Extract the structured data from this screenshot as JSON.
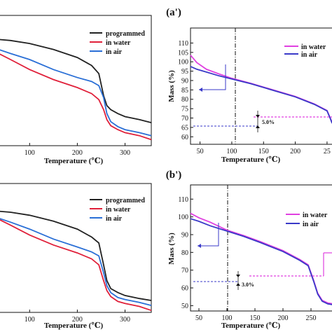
{
  "chart_data": [
    {
      "panel": "top-left",
      "type": "line",
      "title": "",
      "xlabel": "Temperature (℃)",
      "ylabel": "",
      "xlim": [
        35,
        355
      ],
      "ylim": [
        50,
        115
      ],
      "xticks": [
        "100",
        "200",
        "300"
      ],
      "yticks": [],
      "legend": "top-right",
      "series": [
        {
          "name": "programmed",
          "color": "#222222",
          "x": [
            35,
            60,
            100,
            150,
            200,
            230,
            245,
            255,
            262,
            270,
            285,
            300,
            330,
            355
          ],
          "y": [
            103,
            102.5,
            101,
            98,
            94,
            90,
            86,
            75,
            70,
            68,
            66,
            64.5,
            63,
            61.5
          ]
        },
        {
          "name": "in water",
          "color": "#e0203a",
          "x": [
            35,
            60,
            100,
            150,
            200,
            230,
            245,
            255,
            262,
            270,
            285,
            300,
            330,
            355
          ],
          "y": [
            96,
            93,
            88,
            83,
            79,
            76,
            73,
            68,
            63,
            60,
            58,
            56.5,
            55,
            53
          ]
        },
        {
          "name": "in air",
          "color": "#2a6fd6",
          "x": [
            35,
            60,
            100,
            150,
            200,
            230,
            245,
            255,
            262,
            270,
            285,
            300,
            330,
            355
          ],
          "y": [
            98,
            96,
            93,
            88,
            84,
            82,
            80,
            74,
            66,
            62,
            59.5,
            58,
            56.5,
            55
          ]
        }
      ]
    },
    {
      "panel": "top-right",
      "type": "line",
      "title": "(a')",
      "xlabel": "Temperature (℃)",
      "ylabel": "Mass (%)",
      "xlim": [
        35,
        260
      ],
      "ylim": [
        56,
        118
      ],
      "xticks": [
        "50",
        "100",
        "150",
        "200",
        "25"
      ],
      "yticks": [
        "60",
        "65",
        "70",
        "75",
        "80",
        "85",
        "90",
        "95",
        "100",
        "105",
        "110"
      ],
      "legend": "top-right",
      "series": [
        {
          "name": "in water",
          "color": "#e040e0",
          "x": [
            35,
            45,
            60,
            80,
            100,
            130,
            160,
            200,
            230,
            250,
            255,
            258
          ],
          "y": [
            103.5,
            99.5,
            96,
            93.5,
            91.2,
            88.5,
            85.5,
            81.5,
            77.5,
            74,
            70,
            67.5
          ]
        },
        {
          "name": "in air",
          "color": "#3a3ac8",
          "x": [
            35,
            45,
            60,
            80,
            100,
            130,
            160,
            200,
            230,
            250,
            255,
            258
          ],
          "y": [
            97.5,
            96,
            94.5,
            92.5,
            90.8,
            88.3,
            85.3,
            81.3,
            77.3,
            73.8,
            69.8,
            67.2
          ]
        }
      ],
      "annotations": [
        {
          "text": "5.0%"
        }
      ]
    },
    {
      "panel": "bottom-left",
      "type": "line",
      "title": "",
      "xlabel": "Temperature (℃)",
      "ylabel": "",
      "xlim": [
        35,
        355
      ],
      "ylim": [
        50,
        115
      ],
      "xticks": [
        "100",
        "200",
        "300"
      ],
      "yticks": [],
      "legend": "top-right",
      "series": [
        {
          "name": "programmed",
          "color": "#222222",
          "x": [
            35,
            60,
            100,
            150,
            200,
            230,
            245,
            255,
            262,
            270,
            285,
            300,
            330,
            355
          ],
          "y": [
            101,
            100.5,
            99,
            96,
            92,
            88,
            85,
            74,
            66,
            62,
            60,
            58.5,
            57,
            56
          ]
        },
        {
          "name": "in water",
          "color": "#e0203a",
          "x": [
            35,
            60,
            100,
            150,
            200,
            230,
            245,
            255,
            262,
            270,
            285,
            300,
            330,
            355
          ],
          "y": [
            97,
            94,
            89,
            84,
            80,
            77,
            74,
            66,
            61,
            58,
            55.5,
            54.5,
            53,
            51
          ]
        },
        {
          "name": "in air",
          "color": "#2a6fd6",
          "x": [
            35,
            60,
            100,
            150,
            200,
            230,
            245,
            255,
            262,
            270,
            285,
            300,
            330,
            355
          ],
          "y": [
            97.5,
            95.5,
            92,
            87,
            83,
            80.5,
            78.5,
            70,
            63.5,
            60,
            57.5,
            56.5,
            55,
            53.5
          ]
        }
      ]
    },
    {
      "panel": "bottom-right",
      "type": "line",
      "title": "(b')",
      "xlabel": "Temperature (℃)",
      "ylabel": "Mass (%)",
      "xlim": [
        35,
        290
      ],
      "ylim": [
        47,
        118
      ],
      "xticks": [
        "50",
        "100",
        "150",
        "200",
        "250"
      ],
      "yticks": [
        "50",
        "60",
        "70",
        "80",
        "90",
        "100",
        "110"
      ],
      "legend": "top-right",
      "series": [
        {
          "name": "in water",
          "color": "#e040e0",
          "x": [
            35,
            50,
            70,
            90,
            100,
            130,
            160,
            200,
            230,
            245,
            255,
            262,
            270,
            280,
            290
          ],
          "y": [
            102,
            99.5,
            97,
            94,
            92.5,
            89.5,
            86,
            81,
            76,
            73,
            64,
            57,
            53,
            51.5,
            51
          ]
        },
        {
          "name": "in air",
          "color": "#3a3ac8",
          "x": [
            35,
            50,
            70,
            90,
            100,
            130,
            160,
            200,
            230,
            245,
            255,
            262,
            270,
            280,
            290
          ],
          "y": [
            99,
            97.5,
            95,
            93,
            92,
            89,
            85.5,
            80.5,
            75.5,
            72.5,
            63.5,
            56.5,
            52.5,
            51,
            50.5
          ]
        }
      ],
      "annotations": [
        {
          "text": "3.0%"
        }
      ]
    }
  ]
}
